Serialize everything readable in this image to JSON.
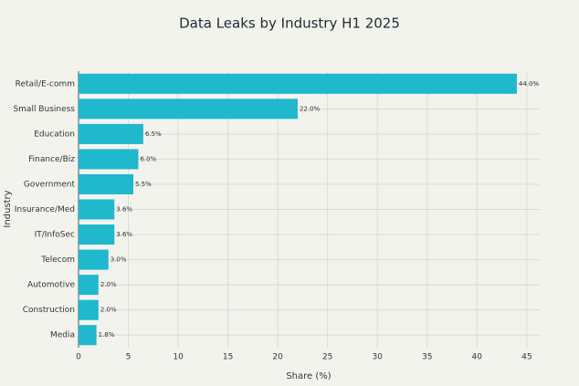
{
  "chart_data": {
    "type": "bar",
    "orientation": "horizontal",
    "title": "Data Leaks by Industry H1 2025",
    "x_label": "Share (%)",
    "y_label": "Industry",
    "categories": [
      "Retail/E-comm",
      "Small Business",
      "Education",
      "Finance/Biz",
      "Government",
      "Insurance/Med",
      "IT/InfoSec",
      "Telecom",
      "Automotive",
      "Construction",
      "Media"
    ],
    "values": [
      44,
      22,
      6.5,
      6,
      5.5,
      3.6,
      3.6,
      3.0,
      2.0,
      2.0,
      1.8
    ],
    "value_labels": [
      "44.0%",
      "22.0%",
      "6.5%",
      "6.0%",
      "5.5%",
      "3.6%",
      "3.6%",
      "3.0%",
      "2.0%",
      "2.0%",
      "1.8%"
    ],
    "color": "#1fb8cd",
    "xlim": [
      0,
      46.3
    ],
    "xticks": [
      0,
      5,
      10,
      15,
      20,
      25,
      30,
      35,
      40,
      45
    ],
    "grid": true
  }
}
